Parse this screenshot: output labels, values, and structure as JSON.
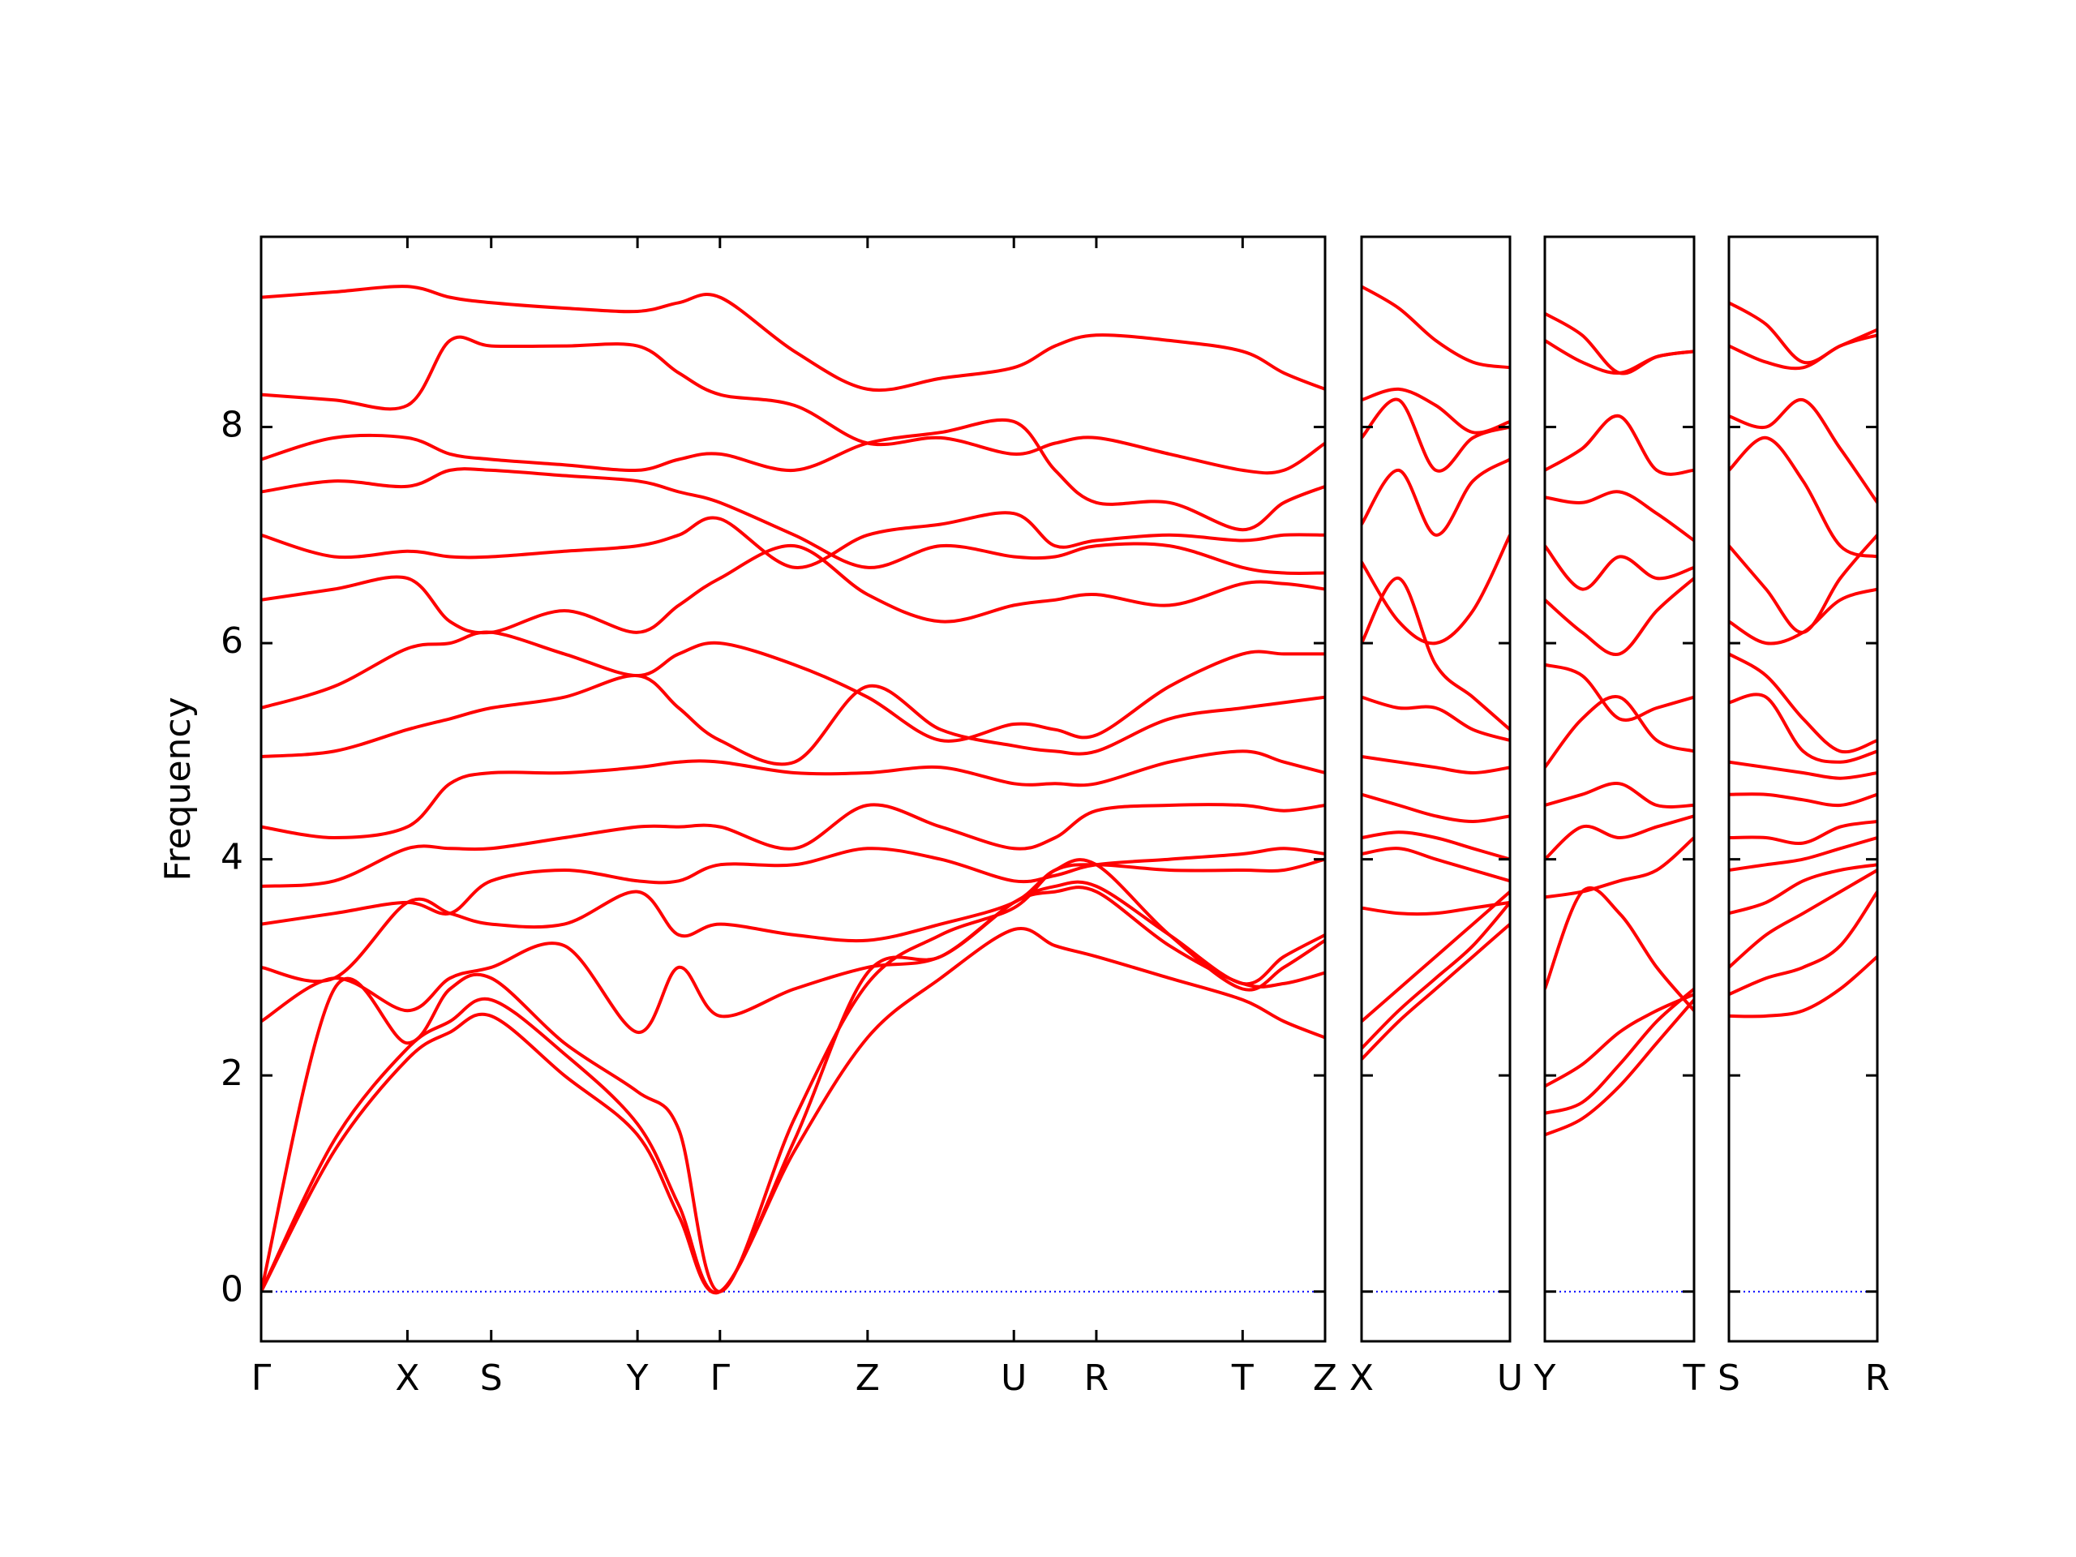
{
  "chart_data": [
    {
      "type": "line",
      "ylabel": "Frequency",
      "color": "#ff0000",
      "show_ytick_labels": true,
      "hline": 0,
      "hline_color": "#0000ff",
      "xlim": [
        0,
        8.0
      ],
      "ylim": [
        -0.46,
        9.76
      ],
      "yticks": [
        0,
        2,
        4,
        6,
        8
      ],
      "xticks": [
        {
          "value": 0,
          "label": "Γ"
        },
        {
          "value": 1.1,
          "label": "X"
        },
        {
          "value": 1.73,
          "label": "S"
        },
        {
          "value": 2.83,
          "label": "Y"
        },
        {
          "value": 3.45,
          "label": "Γ"
        },
        {
          "value": 4.56,
          "label": "Z"
        },
        {
          "value": 5.66,
          "label": "U"
        },
        {
          "value": 6.28,
          "label": "R"
        },
        {
          "value": 7.38,
          "label": "T"
        },
        {
          "value": 8.0,
          "label": "Z"
        }
      ],
      "x": [
        0,
        0.55,
        1.1,
        1.42,
        1.73,
        2.28,
        2.83,
        3.14,
        3.45,
        4.01,
        4.56,
        5.11,
        5.66,
        5.97,
        6.28,
        6.83,
        7.38,
        7.69,
        8.0
      ],
      "series": [
        {
          "values": [
            0,
            1.3,
            2.15,
            2.4,
            2.55,
            2.0,
            1.45,
            0.7,
            0,
            1.3,
            2.35,
            2.9,
            3.35,
            3.2,
            3.1,
            2.9,
            2.7,
            2.5,
            2.35
          ]
        },
        {
          "values": [
            0,
            1.4,
            2.25,
            2.5,
            2.7,
            2.2,
            1.55,
            0.8,
            0,
            1.4,
            2.95,
            3.1,
            3.6,
            3.7,
            3.7,
            3.2,
            2.85,
            2.85,
            2.95
          ]
        },
        {
          "values": [
            0,
            2.8,
            2.3,
            2.8,
            2.9,
            2.3,
            1.85,
            1.5,
            0,
            1.6,
            2.85,
            3.3,
            3.55,
            3.9,
            3.95,
            3.3,
            2.8,
            3.0,
            3.25
          ]
        },
        {
          "values": [
            2.5,
            2.9,
            2.6,
            2.9,
            3.0,
            3.2,
            2.4,
            3.0,
            2.55,
            2.8,
            3.0,
            3.1,
            3.6,
            3.75,
            3.75,
            3.3,
            2.85,
            3.1,
            3.3
          ]
        },
        {
          "values": [
            3.0,
            2.9,
            3.6,
            3.5,
            3.4,
            3.4,
            3.7,
            3.3,
            3.4,
            3.3,
            3.25,
            3.4,
            3.6,
            3.9,
            3.95,
            3.9,
            3.9,
            3.9,
            4.0
          ]
        },
        {
          "values": [
            3.4,
            3.5,
            3.6,
            3.5,
            3.8,
            3.9,
            3.8,
            3.8,
            3.95,
            3.95,
            4.1,
            4.0,
            3.8,
            3.85,
            3.95,
            4.0,
            4.05,
            4.1,
            4.05
          ]
        },
        {
          "values": [
            3.75,
            3.8,
            4.1,
            4.1,
            4.1,
            4.2,
            4.3,
            4.3,
            4.3,
            4.1,
            4.5,
            4.3,
            4.1,
            4.2,
            4.45,
            4.5,
            4.5,
            4.45,
            4.5
          ]
        },
        {
          "values": [
            4.3,
            4.2,
            4.3,
            4.7,
            4.8,
            4.8,
            4.85,
            4.9,
            4.9,
            4.8,
            4.8,
            4.85,
            4.7,
            4.7,
            4.7,
            4.9,
            5.0,
            4.9,
            4.8
          ]
        },
        {
          "values": [
            4.95,
            5.0,
            5.2,
            5.3,
            5.4,
            5.5,
            5.7,
            5.4,
            5.1,
            4.9,
            5.6,
            5.2,
            5.05,
            5.0,
            5.0,
            5.3,
            5.4,
            5.45,
            5.5
          ]
        },
        {
          "values": [
            5.4,
            5.6,
            5.95,
            6.0,
            6.1,
            5.9,
            5.7,
            5.9,
            6.0,
            5.8,
            5.5,
            5.1,
            5.25,
            5.2,
            5.15,
            5.6,
            5.9,
            5.9,
            5.9
          ]
        },
        {
          "values": [
            6.4,
            6.5,
            6.6,
            6.2,
            6.1,
            6.3,
            6.1,
            6.35,
            6.6,
            6.9,
            6.45,
            6.2,
            6.35,
            6.4,
            6.45,
            6.35,
            6.55,
            6.55,
            6.5
          ]
        },
        {
          "values": [
            7.0,
            6.8,
            6.85,
            6.8,
            6.8,
            6.85,
            6.9,
            7.0,
            7.15,
            6.7,
            7.0,
            7.1,
            7.2,
            6.9,
            6.95,
            7.0,
            6.95,
            7.0,
            7.0
          ]
        },
        {
          "values": [
            7.4,
            7.5,
            7.45,
            7.6,
            7.6,
            7.55,
            7.5,
            7.4,
            7.3,
            7.0,
            6.7,
            6.9,
            6.8,
            6.8,
            6.9,
            6.9,
            6.7,
            6.65,
            6.65
          ]
        },
        {
          "values": [
            7.7,
            7.9,
            7.9,
            7.75,
            7.7,
            7.65,
            7.6,
            7.7,
            7.75,
            7.6,
            7.85,
            7.95,
            8.05,
            7.6,
            7.3,
            7.3,
            7.05,
            7.3,
            7.45
          ]
        },
        {
          "values": [
            8.3,
            8.25,
            8.2,
            8.8,
            8.75,
            8.75,
            8.75,
            8.5,
            8.3,
            8.2,
            7.85,
            7.9,
            7.75,
            7.85,
            7.9,
            7.75,
            7.6,
            7.6,
            7.85
          ]
        },
        {
          "values": [
            9.2,
            9.25,
            9.3,
            9.2,
            9.15,
            9.1,
            9.07,
            9.15,
            9.2,
            8.7,
            8.35,
            8.45,
            8.55,
            8.75,
            8.85,
            8.8,
            8.7,
            8.5,
            8.35
          ]
        }
      ]
    },
    {
      "type": "line",
      "color": "#ff0000",
      "show_ytick_labels": false,
      "hline": 0,
      "hline_color": "#0000ff",
      "xlim": [
        0,
        1.12
      ],
      "ylim": [
        -0.46,
        9.76
      ],
      "yticks": [
        0,
        2,
        4,
        6,
        8
      ],
      "xticks": [
        {
          "value": 0,
          "label": "X"
        },
        {
          "value": 1.12,
          "label": "U"
        }
      ],
      "x": [
        0,
        0.28,
        0.56,
        0.84,
        1.12
      ],
      "series": [
        {
          "values": [
            2.15,
            2.5,
            2.8,
            3.1,
            3.4
          ]
        },
        {
          "values": [
            2.25,
            2.6,
            2.9,
            3.2,
            3.6
          ]
        },
        {
          "values": [
            2.5,
            2.8,
            3.1,
            3.4,
            3.7
          ]
        },
        {
          "values": [
            3.55,
            3.5,
            3.5,
            3.55,
            3.6
          ]
        },
        {
          "values": [
            4.05,
            4.1,
            4.0,
            3.9,
            3.8
          ]
        },
        {
          "values": [
            4.2,
            4.25,
            4.2,
            4.1,
            4.0
          ]
        },
        {
          "values": [
            4.6,
            4.5,
            4.4,
            4.35,
            4.4
          ]
        },
        {
          "values": [
            4.95,
            4.9,
            4.85,
            4.8,
            4.85
          ]
        },
        {
          "values": [
            5.5,
            5.4,
            5.4,
            5.2,
            5.1
          ]
        },
        {
          "values": [
            6.0,
            6.6,
            5.8,
            5.5,
            5.2
          ]
        },
        {
          "values": [
            6.75,
            6.2,
            6.0,
            6.3,
            7.0
          ]
        },
        {
          "values": [
            7.1,
            7.6,
            7.0,
            7.5,
            7.7
          ]
        },
        {
          "values": [
            7.9,
            8.25,
            7.6,
            7.9,
            8.0
          ]
        },
        {
          "values": [
            8.25,
            8.35,
            8.2,
            7.95,
            8.05
          ]
        },
        {
          "values": [
            9.3,
            9.1,
            8.8,
            8.6,
            8.55
          ]
        }
      ]
    },
    {
      "type": "line",
      "color": "#ff0000",
      "show_ytick_labels": false,
      "hline": 0,
      "hline_color": "#0000ff",
      "xlim": [
        0,
        1.12
      ],
      "ylim": [
        -0.46,
        9.76
      ],
      "yticks": [
        0,
        2,
        4,
        6,
        8
      ],
      "xticks": [
        {
          "value": 0,
          "label": "Y"
        },
        {
          "value": 1.12,
          "label": "T"
        }
      ],
      "x": [
        0,
        0.28,
        0.56,
        0.84,
        1.12
      ],
      "series": [
        {
          "values": [
            1.45,
            1.6,
            1.9,
            2.3,
            2.7
          ]
        },
        {
          "values": [
            1.65,
            1.75,
            2.1,
            2.5,
            2.8
          ]
        },
        {
          "values": [
            1.9,
            2.1,
            2.4,
            2.6,
            2.75
          ]
        },
        {
          "values": [
            2.8,
            3.7,
            3.5,
            3.0,
            2.6
          ]
        },
        {
          "values": [
            3.65,
            3.7,
            3.8,
            3.9,
            4.2
          ]
        },
        {
          "values": [
            4.0,
            4.3,
            4.2,
            4.3,
            4.4
          ]
        },
        {
          "values": [
            4.5,
            4.6,
            4.7,
            4.5,
            4.5
          ]
        },
        {
          "values": [
            4.85,
            5.3,
            5.5,
            5.1,
            5.0
          ]
        },
        {
          "values": [
            5.8,
            5.7,
            5.3,
            5.4,
            5.5
          ]
        },
        {
          "values": [
            6.4,
            6.1,
            5.9,
            6.3,
            6.6
          ]
        },
        {
          "values": [
            6.9,
            6.5,
            6.8,
            6.6,
            6.7
          ]
        },
        {
          "values": [
            7.35,
            7.3,
            7.4,
            7.2,
            6.95
          ]
        },
        {
          "values": [
            7.6,
            7.8,
            8.1,
            7.6,
            7.6
          ]
        },
        {
          "values": [
            8.8,
            8.6,
            8.5,
            8.65,
            8.7
          ]
        },
        {
          "values": [
            9.05,
            8.85,
            8.5,
            8.65,
            8.7
          ]
        }
      ]
    },
    {
      "type": "line",
      "color": "#ff0000",
      "show_ytick_labels": false,
      "hline": 0,
      "hline_color": "#0000ff",
      "xlim": [
        0,
        1.12
      ],
      "ylim": [
        -0.46,
        9.76
      ],
      "yticks": [
        0,
        2,
        4,
        6,
        8
      ],
      "xticks": [
        {
          "value": 0,
          "label": "S"
        },
        {
          "value": 1.12,
          "label": "R"
        }
      ],
      "x": [
        0,
        0.28,
        0.56,
        0.84,
        1.12
      ],
      "series": [
        {
          "values": [
            2.55,
            2.55,
            2.6,
            2.8,
            3.1
          ]
        },
        {
          "values": [
            2.75,
            2.9,
            3.0,
            3.2,
            3.7
          ]
        },
        {
          "values": [
            3.0,
            3.3,
            3.5,
            3.7,
            3.9
          ]
        },
        {
          "values": [
            3.5,
            3.6,
            3.8,
            3.9,
            3.95
          ]
        },
        {
          "values": [
            3.9,
            3.95,
            4.0,
            4.1,
            4.2
          ]
        },
        {
          "values": [
            4.2,
            4.2,
            4.15,
            4.3,
            4.35
          ]
        },
        {
          "values": [
            4.6,
            4.6,
            4.55,
            4.5,
            4.6
          ]
        },
        {
          "values": [
            4.9,
            4.85,
            4.8,
            4.75,
            4.8
          ]
        },
        {
          "values": [
            5.45,
            5.5,
            5.0,
            4.9,
            5.0
          ]
        },
        {
          "values": [
            5.9,
            5.7,
            5.3,
            5.0,
            5.1
          ]
        },
        {
          "values": [
            6.2,
            6.0,
            6.1,
            6.4,
            6.5
          ]
        },
        {
          "values": [
            6.9,
            6.5,
            6.1,
            6.6,
            7.0
          ]
        },
        {
          "values": [
            7.6,
            7.9,
            7.5,
            6.9,
            6.8
          ]
        },
        {
          "values": [
            8.1,
            8.0,
            8.25,
            7.8,
            7.3
          ]
        },
        {
          "values": [
            8.75,
            8.6,
            8.55,
            8.75,
            8.85
          ]
        },
        {
          "values": [
            9.15,
            8.95,
            8.6,
            8.75,
            8.9
          ]
        }
      ]
    }
  ]
}
